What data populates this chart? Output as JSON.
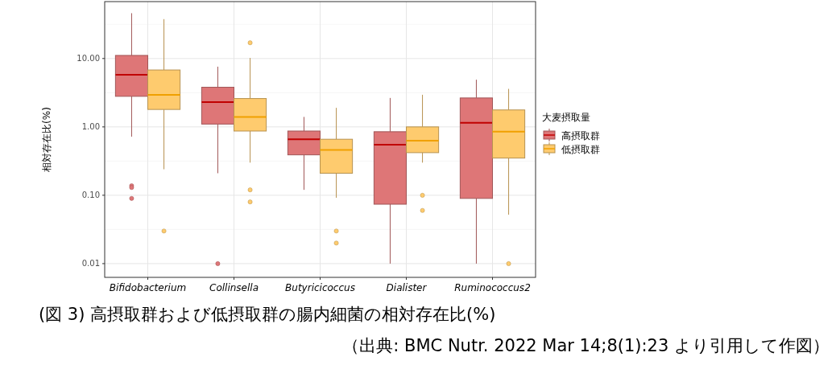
{
  "chart_data": {
    "type": "box",
    "ylabel": "相対存在比(%)",
    "legend_title": "大麦摂取量",
    "legend": "right",
    "grid": true,
    "log": true,
    "ylim": [
      0.0063,
      68
    ],
    "yticks": [
      {
        "value": 10,
        "label": "10.00"
      },
      {
        "value": 1,
        "label": "1.00"
      },
      {
        "value": 0.1,
        "label": "0.10"
      },
      {
        "value": 0.01,
        "label": "0.01"
      }
    ],
    "categories": [
      "Bifidobacterium",
      "Collinsella",
      "Butyricicoccus",
      "Dialister",
      "Ruminococcus2"
    ],
    "series": [
      {
        "name": "高摂取群",
        "color": "#de7677",
        "boxes": [
          {
            "low": 0.72,
            "q1": 2.8,
            "median": 5.8,
            "q3": 11.1,
            "high": 46,
            "outliers": [
              0.138,
              0.13,
              0.09
            ]
          },
          {
            "low": 0.21,
            "q1": 1.1,
            "median": 2.3,
            "q3": 3.8,
            "high": 7.6,
            "outliers": [
              0.01
            ]
          },
          {
            "low": 0.12,
            "q1": 0.39,
            "median": 0.66,
            "q3": 0.87,
            "high": 1.4
          },
          {
            "low": 0.01,
            "q1": 0.074,
            "median": 0.55,
            "q3": 0.85,
            "high": 2.65
          },
          {
            "low": 0.01,
            "q1": 0.09,
            "median": 1.15,
            "q3": 2.65,
            "high": 4.9
          }
        ]
      },
      {
        "name": "低摂取群",
        "color": "#fecb6e",
        "boxes": [
          {
            "low": 0.24,
            "q1": 1.8,
            "median": 2.95,
            "q3": 6.8,
            "high": 37.7,
            "outliers": [
              0.03
            ]
          },
          {
            "low": 0.3,
            "q1": 0.87,
            "median": 1.4,
            "q3": 2.6,
            "high": 10.2,
            "outliers": [
              17,
              0.12,
              0.08
            ]
          },
          {
            "low": 0.092,
            "q1": 0.21,
            "median": 0.46,
            "q3": 0.66,
            "high": 1.9,
            "outliers": [
              0.03,
              0.02
            ]
          },
          {
            "low": 0.3,
            "q1": 0.42,
            "median": 0.63,
            "q3": 1.0,
            "high": 2.95,
            "outliers": [
              0.1,
              0.06
            ]
          },
          {
            "low": 0.052,
            "q1": 0.35,
            "median": 0.85,
            "q3": 1.77,
            "high": 3.6,
            "outliers": [
              0.01
            ]
          }
        ]
      }
    ],
    "annotations": [
      "(図 3) 高摂取群および低摂取群の腸内細菌の相対存在比(%)",
      "（出典: BMC Nutr. 2022 Mar 14;8(1):23 より引用して作図）"
    ]
  }
}
